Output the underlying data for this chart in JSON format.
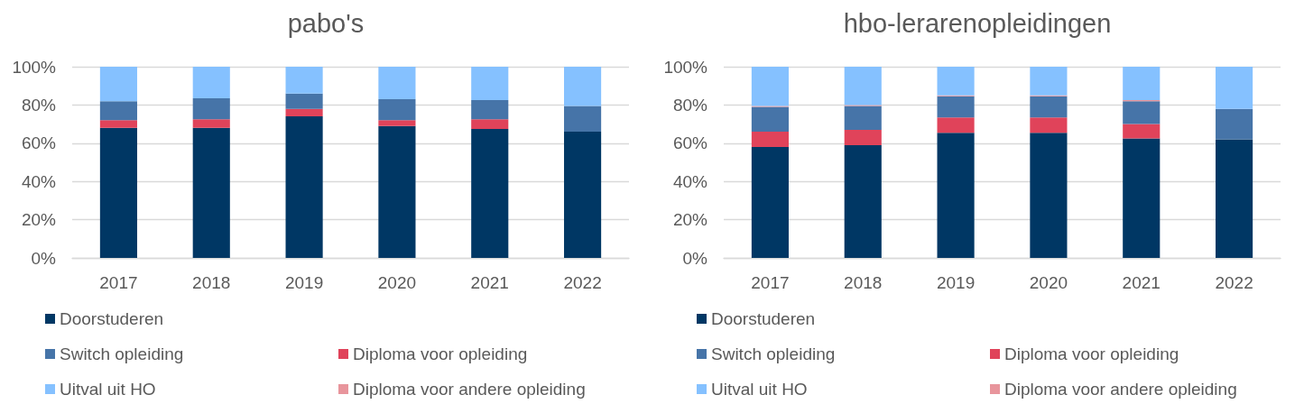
{
  "chart_data": [
    {
      "type": "bar",
      "title": "pabo's",
      "stacked": true,
      "categories": [
        "2017",
        "2018",
        "2019",
        "2020",
        "2021",
        "2022"
      ],
      "series": [
        {
          "name": "Doorstuderen",
          "color": "#003764",
          "values": [
            68,
            68,
            74,
            69,
            67.5,
            66
          ]
        },
        {
          "name": "Diploma voor opleiding",
          "color": "#e0435a",
          "values": [
            4,
            4.5,
            4,
            3,
            5,
            0
          ]
        },
        {
          "name": "Switch opleiding",
          "color": "#4674a8",
          "values": [
            10,
            11,
            8,
            11,
            10,
            13.5
          ]
        },
        {
          "name": "Diploma voor andere opleiding",
          "color": "#e8959c",
          "values": [
            0,
            0,
            0,
            0,
            0,
            0
          ]
        },
        {
          "name": "Uitval uit HO",
          "color": "#85c1ff",
          "values": [
            18,
            16.5,
            14,
            17,
            17.5,
            20.5
          ]
        }
      ],
      "ylim": [
        0,
        100
      ],
      "yticks": [
        {
          "value": 0,
          "label": "0%"
        },
        {
          "value": 20,
          "label": "20%"
        },
        {
          "value": 40,
          "label": "40%"
        },
        {
          "value": 60,
          "label": "60%"
        },
        {
          "value": 80,
          "label": "80%"
        },
        {
          "value": 100,
          "label": "100%"
        }
      ],
      "grid": "y",
      "legend": "bottom"
    },
    {
      "type": "bar",
      "title": "hbo-lerarenopleidingen",
      "stacked": true,
      "categories": [
        "2017",
        "2018",
        "2019",
        "2020",
        "2021",
        "2022"
      ],
      "series": [
        {
          "name": "Doorstuderen",
          "color": "#003764",
          "values": [
            58,
            59,
            65.5,
            65.5,
            62.5,
            62
          ]
        },
        {
          "name": "Diploma voor opleiding",
          "color": "#e0435a",
          "values": [
            8,
            8,
            8,
            8,
            7.5,
            0
          ]
        },
        {
          "name": "Switch opleiding",
          "color": "#4674a8",
          "values": [
            13,
            12.5,
            11,
            11,
            12,
            16
          ]
        },
        {
          "name": "Diploma voor andere opleiding",
          "color": "#e8959c",
          "values": [
            0.5,
            0.5,
            0.5,
            0.5,
            0.5,
            0
          ]
        },
        {
          "name": "Uitval uit HO",
          "color": "#85c1ff",
          "values": [
            20.5,
            20,
            15,
            15,
            17.5,
            22
          ]
        }
      ],
      "ylim": [
        0,
        100
      ],
      "yticks": [
        {
          "value": 0,
          "label": "0%"
        },
        {
          "value": 20,
          "label": "20%"
        },
        {
          "value": 40,
          "label": "40%"
        },
        {
          "value": 60,
          "label": "60%"
        },
        {
          "value": 80,
          "label": "80%"
        },
        {
          "value": 100,
          "label": "100%"
        }
      ],
      "grid": "y",
      "legend": "bottom"
    }
  ]
}
